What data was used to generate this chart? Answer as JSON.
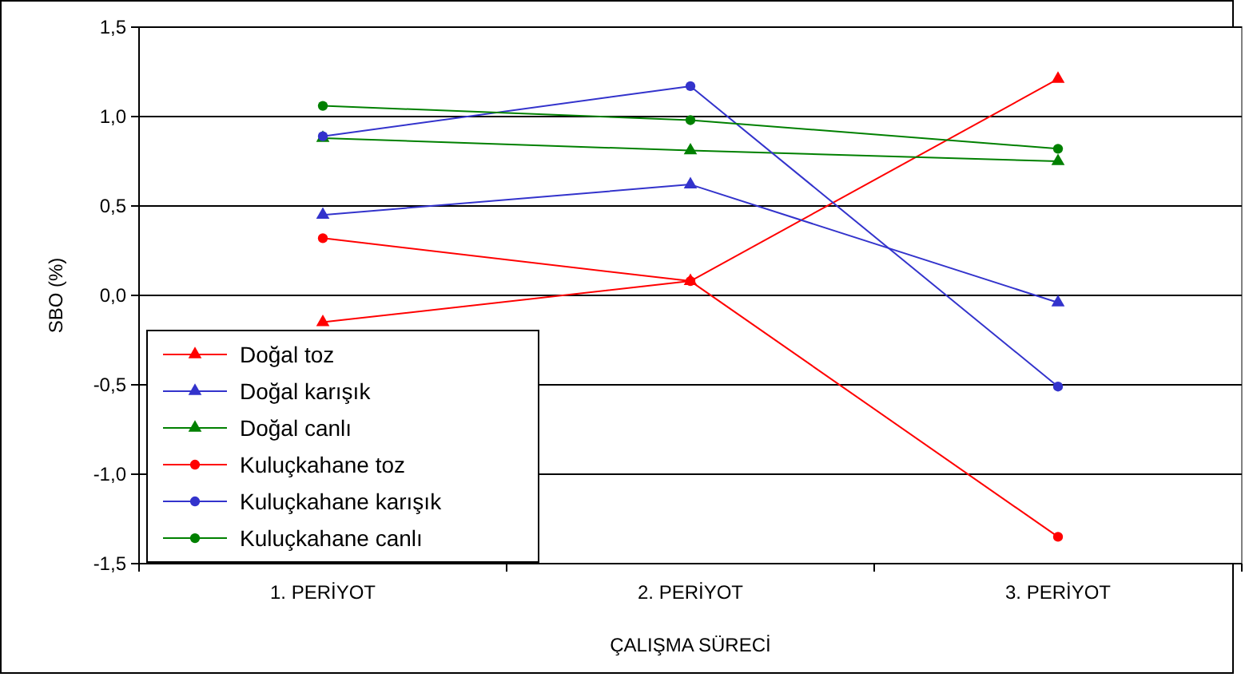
{
  "chart_data": {
    "type": "line",
    "xlabel": "ÇALIŞMA SÜRECİ",
    "ylabel": "SBO (%)",
    "categories": [
      "1. PERİYOT",
      "2. PERİYOT",
      "3. PERİYOT"
    ],
    "series": [
      {
        "name": "Doğal toz",
        "color": "#ff0000",
        "marker": "triangle",
        "values": [
          -0.15,
          0.08,
          1.21
        ]
      },
      {
        "name": "Doğal karışık",
        "color": "#3333cc",
        "marker": "triangle",
        "values": [
          0.45,
          0.62,
          -0.04
        ]
      },
      {
        "name": "Doğal canlı",
        "color": "#008000",
        "marker": "triangle",
        "values": [
          0.88,
          0.81,
          0.75
        ]
      },
      {
        "name": "Kuluçkahane toz",
        "color": "#ff0000",
        "marker": "circle",
        "values": [
          0.32,
          0.08,
          -1.35
        ]
      },
      {
        "name": "Kuluçkahane karışık",
        "color": "#3333cc",
        "marker": "circle",
        "values": [
          0.89,
          1.17,
          -0.51
        ]
      },
      {
        "name": "Kuluçkahane canlı",
        "color": "#008000",
        "marker": "circle",
        "values": [
          1.06,
          0.98,
          0.82
        ]
      }
    ],
    "ylim": [
      -1.5,
      1.5
    ],
    "yticks": [
      {
        "value": -1.5,
        "label": "-1,5"
      },
      {
        "value": -1,
        "label": "-1,0"
      },
      {
        "value": -0.5,
        "label": "-0,5"
      },
      {
        "value": 0,
        "label": "0,0"
      },
      {
        "value": 0.5,
        "label": "0,5"
      },
      {
        "value": 1,
        "label": "1,0"
      },
      {
        "value": 1.5,
        "label": "1,5"
      }
    ],
    "grid": "y",
    "legend": "bottom left",
    "line_style": "solid"
  }
}
